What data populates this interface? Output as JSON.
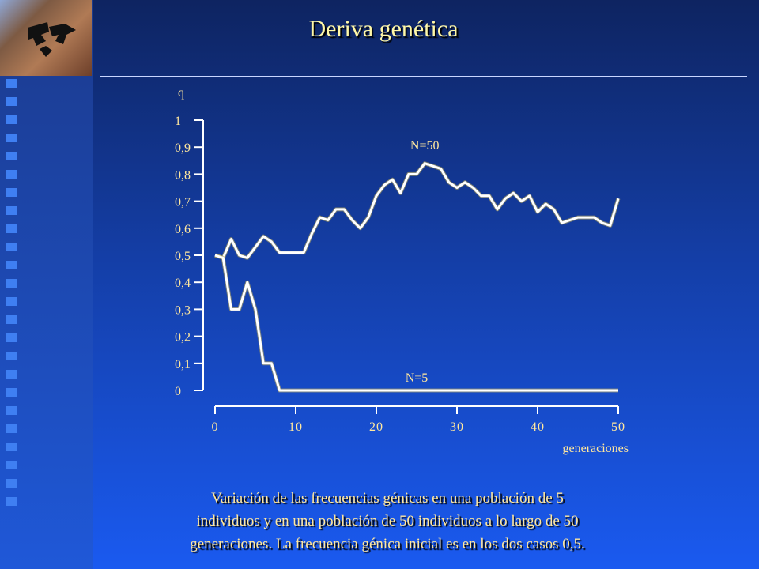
{
  "slide": {
    "title": "Deriva genética",
    "caption_lines": [
      "Variación de las frecuencias génicas en una población de 5",
      "individuos  y en una población de 50 individuos a lo largo de 50",
      "generaciones. La frecuencia génica inicial es en los dos casos 0,5."
    ]
  },
  "chart_data": {
    "type": "line",
    "title": "",
    "xlabel": "generaciones",
    "ylabel": "q",
    "xlim": [
      0,
      50
    ],
    "ylim": [
      0,
      1
    ],
    "x_ticks": [
      0,
      10,
      20,
      30,
      40,
      50
    ],
    "x_tick_labels": [
      "0",
      "10",
      "20",
      "30",
      "40",
      "50"
    ],
    "y_ticks": [
      0,
      0.1,
      0.2,
      0.3,
      0.4,
      0.5,
      0.6,
      0.7,
      0.8,
      0.9,
      1
    ],
    "y_tick_labels": [
      "0",
      "0,1",
      "0,2",
      "0,3",
      "0,4",
      "0,5",
      "0,6",
      "0,7",
      "0,8",
      "0,9",
      "1"
    ],
    "grid": false,
    "series": [
      {
        "name": "N=50",
        "color": "#ffffff",
        "x": [
          0,
          1,
          2,
          3,
          4,
          5,
          6,
          7,
          8,
          9,
          10,
          11,
          12,
          13,
          14,
          15,
          16,
          17,
          18,
          19,
          20,
          21,
          22,
          23,
          24,
          25,
          26,
          27,
          28,
          29,
          30,
          31,
          32,
          33,
          34,
          35,
          36,
          37,
          38,
          39,
          40,
          41,
          42,
          43,
          44,
          45,
          46,
          47,
          48,
          49,
          50
        ],
        "y": [
          0.5,
          0.49,
          0.56,
          0.5,
          0.49,
          0.53,
          0.57,
          0.55,
          0.51,
          0.51,
          0.51,
          0.51,
          0.58,
          0.64,
          0.63,
          0.67,
          0.67,
          0.63,
          0.6,
          0.64,
          0.72,
          0.76,
          0.78,
          0.73,
          0.8,
          0.8,
          0.84,
          0.83,
          0.82,
          0.77,
          0.75,
          0.77,
          0.75,
          0.72,
          0.72,
          0.67,
          0.71,
          0.73,
          0.7,
          0.72,
          0.66,
          0.69,
          0.67,
          0.62,
          0.63,
          0.64,
          0.64,
          0.64,
          0.62,
          0.61,
          0.71
        ]
      },
      {
        "name": "N=5",
        "color": "#ffffff",
        "x": [
          0,
          1,
          2,
          3,
          4,
          5,
          6,
          7,
          8,
          9,
          10,
          11,
          12,
          13,
          14,
          15,
          16,
          17,
          18,
          19,
          20,
          21,
          22,
          23,
          24,
          25,
          26,
          27,
          28,
          29,
          30,
          31,
          32,
          33,
          34,
          35,
          36,
          37,
          38,
          39,
          40,
          41,
          42,
          43,
          44,
          45,
          46,
          47,
          48,
          49,
          50
        ],
        "y": [
          0.5,
          0.49,
          0.3,
          0.3,
          0.4,
          0.3,
          0.1,
          0.1,
          0,
          0,
          0,
          0,
          0,
          0,
          0,
          0,
          0,
          0,
          0,
          0,
          0,
          0,
          0,
          0,
          0,
          0,
          0,
          0,
          0,
          0,
          0,
          0,
          0,
          0,
          0,
          0,
          0,
          0,
          0,
          0,
          0,
          0,
          0,
          0,
          0,
          0,
          0,
          0,
          0,
          0,
          0
        ]
      }
    ],
    "annotations": [
      {
        "text": "N=50",
        "x": 26,
        "y": 0.91
      },
      {
        "text": "N=5",
        "x": 25,
        "y": 0.05
      }
    ]
  }
}
